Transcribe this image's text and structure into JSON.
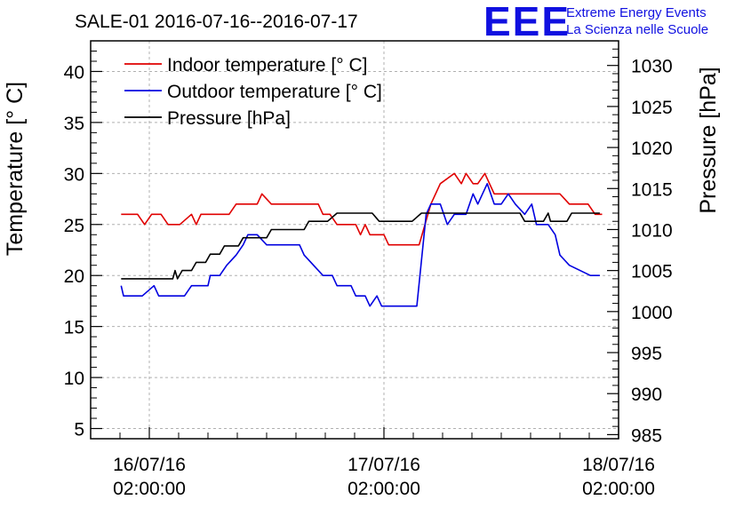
{
  "chart_data": {
    "type": "line",
    "title": "SALE-01 2016-07-16--2016-07-17",
    "ylabel": "Temperature [° C]",
    "y2label": "Pressure [hPa]",
    "ylim": [
      4,
      43
    ],
    "y2lim": [
      984.5,
      1033
    ],
    "xlim": [
      -0.25,
      2.0
    ],
    "yticks": [
      5,
      10,
      15,
      20,
      25,
      30,
      35,
      40
    ],
    "y2ticks": [
      985,
      990,
      995,
      1000,
      1005,
      1010,
      1015,
      1020,
      1025,
      1030
    ],
    "xticks": [
      {
        "x": 0,
        "date": "16/07/16",
        "time": "02:00:00"
      },
      {
        "x": 1,
        "date": "17/07/16",
        "time": "02:00:00"
      },
      {
        "x": 2,
        "date": "18/07/16",
        "time": "02:00:00"
      }
    ],
    "grid": true,
    "legend_position": "top-left",
    "series": [
      {
        "name": "Indoor temperature [° C]",
        "axis": "left",
        "color": "#e00000",
        "points": [
          [
            -0.12,
            26
          ],
          [
            -0.05,
            26
          ],
          [
            -0.02,
            25
          ],
          [
            0.01,
            26
          ],
          [
            0.05,
            26
          ],
          [
            0.08,
            25
          ],
          [
            0.13,
            25
          ],
          [
            0.18,
            26
          ],
          [
            0.2,
            25
          ],
          [
            0.22,
            26
          ],
          [
            0.34,
            26
          ],
          [
            0.37,
            27
          ],
          [
            0.46,
            27
          ],
          [
            0.48,
            28
          ],
          [
            0.52,
            27
          ],
          [
            0.72,
            27
          ],
          [
            0.74,
            26
          ],
          [
            0.77,
            26
          ],
          [
            0.8,
            25
          ],
          [
            0.88,
            25
          ],
          [
            0.9,
            24
          ],
          [
            0.92,
            25
          ],
          [
            0.94,
            24
          ],
          [
            1.0,
            24
          ],
          [
            1.02,
            23
          ],
          [
            1.15,
            23
          ],
          [
            1.2,
            27
          ],
          [
            1.24,
            29
          ],
          [
            1.3,
            30
          ],
          [
            1.33,
            29
          ],
          [
            1.35,
            30
          ],
          [
            1.38,
            29
          ],
          [
            1.4,
            29
          ],
          [
            1.43,
            30
          ],
          [
            1.47,
            28
          ],
          [
            1.5,
            28
          ],
          [
            1.52,
            28
          ],
          [
            1.75,
            28
          ],
          [
            1.79,
            27
          ],
          [
            1.87,
            27
          ],
          [
            1.9,
            26
          ],
          [
            1.93,
            26
          ]
        ]
      },
      {
        "name": "Outdoor temperature [° C]",
        "axis": "left",
        "color": "#0000e0",
        "points": [
          [
            -0.12,
            19
          ],
          [
            -0.11,
            18
          ],
          [
            -0.03,
            18
          ],
          [
            0.02,
            19
          ],
          [
            0.04,
            18
          ],
          [
            0.15,
            18
          ],
          [
            0.18,
            19
          ],
          [
            0.25,
            19
          ],
          [
            0.26,
            20
          ],
          [
            0.3,
            20
          ],
          [
            0.33,
            21
          ],
          [
            0.37,
            22
          ],
          [
            0.4,
            23
          ],
          [
            0.42,
            24
          ],
          [
            0.46,
            24
          ],
          [
            0.5,
            23
          ],
          [
            0.64,
            23
          ],
          [
            0.66,
            22
          ],
          [
            0.7,
            21
          ],
          [
            0.74,
            20
          ],
          [
            0.78,
            20
          ],
          [
            0.8,
            19
          ],
          [
            0.86,
            19
          ],
          [
            0.88,
            18
          ],
          [
            0.92,
            18
          ],
          [
            0.94,
            17
          ],
          [
            0.97,
            18
          ],
          [
            0.99,
            17
          ],
          [
            1.1,
            17
          ],
          [
            1.14,
            17
          ],
          [
            1.18,
            26
          ],
          [
            1.2,
            27
          ],
          [
            1.24,
            27
          ],
          [
            1.27,
            25
          ],
          [
            1.3,
            26
          ],
          [
            1.35,
            26
          ],
          [
            1.38,
            28
          ],
          [
            1.4,
            27
          ],
          [
            1.44,
            29
          ],
          [
            1.47,
            27
          ],
          [
            1.5,
            27
          ],
          [
            1.53,
            28
          ],
          [
            1.56,
            27
          ],
          [
            1.6,
            26
          ],
          [
            1.63,
            27
          ],
          [
            1.65,
            25
          ],
          [
            1.7,
            25
          ],
          [
            1.73,
            24
          ],
          [
            1.75,
            22
          ],
          [
            1.79,
            21
          ],
          [
            1.88,
            20
          ],
          [
            1.92,
            20
          ]
        ]
      },
      {
        "name": "Pressure [hPa]",
        "axis": "right",
        "color": "#000000",
        "points": [
          [
            -0.12,
            1004
          ],
          [
            0.1,
            1004
          ],
          [
            0.11,
            1005
          ],
          [
            0.12,
            1004
          ],
          [
            0.14,
            1005
          ],
          [
            0.18,
            1005
          ],
          [
            0.2,
            1006
          ],
          [
            0.24,
            1006
          ],
          [
            0.26,
            1007
          ],
          [
            0.3,
            1007
          ],
          [
            0.32,
            1008
          ],
          [
            0.38,
            1008
          ],
          [
            0.4,
            1009
          ],
          [
            0.5,
            1009
          ],
          [
            0.52,
            1010
          ],
          [
            0.66,
            1010
          ],
          [
            0.68,
            1011
          ],
          [
            0.76,
            1011
          ],
          [
            0.8,
            1012
          ],
          [
            0.95,
            1012
          ],
          [
            0.98,
            1011
          ],
          [
            1.12,
            1011
          ],
          [
            1.16,
            1012
          ],
          [
            1.3,
            1012
          ],
          [
            1.34,
            1012
          ],
          [
            1.58,
            1012
          ],
          [
            1.6,
            1011
          ],
          [
            1.68,
            1011
          ],
          [
            1.7,
            1012
          ],
          [
            1.71,
            1011
          ],
          [
            1.78,
            1011
          ],
          [
            1.8,
            1012
          ],
          [
            1.92,
            1012
          ]
        ]
      }
    ]
  },
  "logo": {
    "text": "EEE",
    "color": "#1010e0",
    "line1": "Extreme Energy Events",
    "line2": "La Scienza nelle Scuole"
  }
}
